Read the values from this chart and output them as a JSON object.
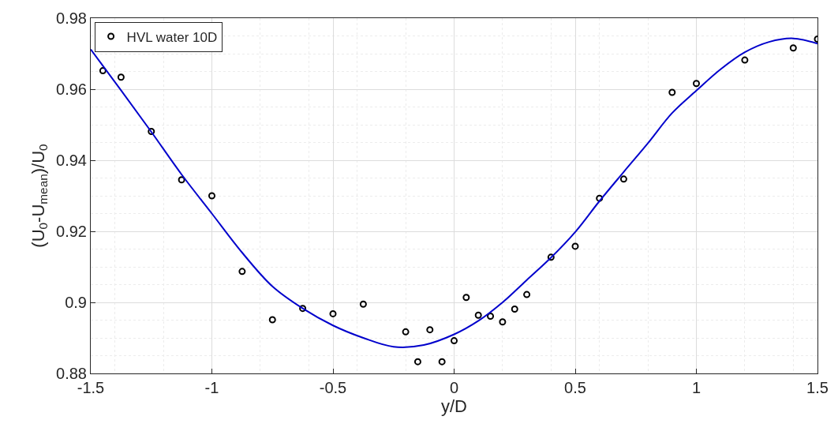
{
  "chart_data": {
    "type": "scatter",
    "xlabel": "y/D",
    "ylabel": "(U$_{0}$-U$_{mean}$)/U$_{0}$",
    "xlim": [
      -1.5,
      1.5
    ],
    "xticks": [
      -1.5,
      -1,
      -0.5,
      0,
      0.5,
      1,
      1.5
    ],
    "ylim": [
      0.88,
      0.98
    ],
    "yticks": [
      0.88,
      0.9,
      0.92,
      0.94,
      0.96,
      0.98
    ],
    "grid": true,
    "legend": "top left",
    "marker": "circle",
    "series": [
      {
        "name": "HVL water 10D",
        "color": "#000000",
        "x": [
          -1.45,
          -1.375,
          -1.25,
          -1.125,
          -1.0,
          -0.875,
          -0.75,
          -0.625,
          -0.5,
          -0.375,
          -0.2,
          -0.15,
          -0.1,
          -0.05,
          0,
          0.05,
          0.1,
          0.15,
          0.2,
          0.25,
          0.3,
          0.4,
          0.5,
          0.6,
          0.7,
          0.9,
          1.0,
          1.2,
          1.4,
          1.5
        ],
        "values": [
          0.9652,
          0.9634,
          0.9481,
          0.9345,
          0.93,
          0.9087,
          0.8951,
          0.8983,
          0.8968,
          0.8995,
          0.8917,
          0.8833,
          0.8923,
          0.8833,
          0.8892,
          0.9014,
          0.8964,
          0.8961,
          0.8945,
          0.8981,
          0.9022,
          0.9127,
          0.9158,
          0.9293,
          0.9347,
          0.9591,
          0.9616,
          0.9682,
          0.9716,
          0.9741
        ]
      },
      {
        "type": "line",
        "color": "#0000cc",
        "marker": "none",
        "line_style": "solid",
        "x": [
          -1.5,
          -1.375,
          -1.25,
          -1.125,
          -1.0,
          -0.875,
          -0.75,
          -0.625,
          -0.5,
          -0.375,
          -0.25,
          -0.125,
          0,
          0.1,
          0.2,
          0.3,
          0.4,
          0.5,
          0.6,
          0.7,
          0.8,
          0.9,
          1.0,
          1.1,
          1.2,
          1.3,
          1.4,
          1.5
        ],
        "values": [
          0.9712,
          0.9597,
          0.948,
          0.936,
          0.925,
          0.914,
          0.9045,
          0.8983,
          0.8935,
          0.89,
          0.8875,
          0.888,
          0.891,
          0.8948,
          0.9,
          0.9063,
          0.9126,
          0.9198,
          0.9285,
          0.9367,
          0.9448,
          0.9533,
          0.9596,
          0.9656,
          0.9704,
          0.9733,
          0.9743,
          0.9728
        ]
      }
    ]
  }
}
